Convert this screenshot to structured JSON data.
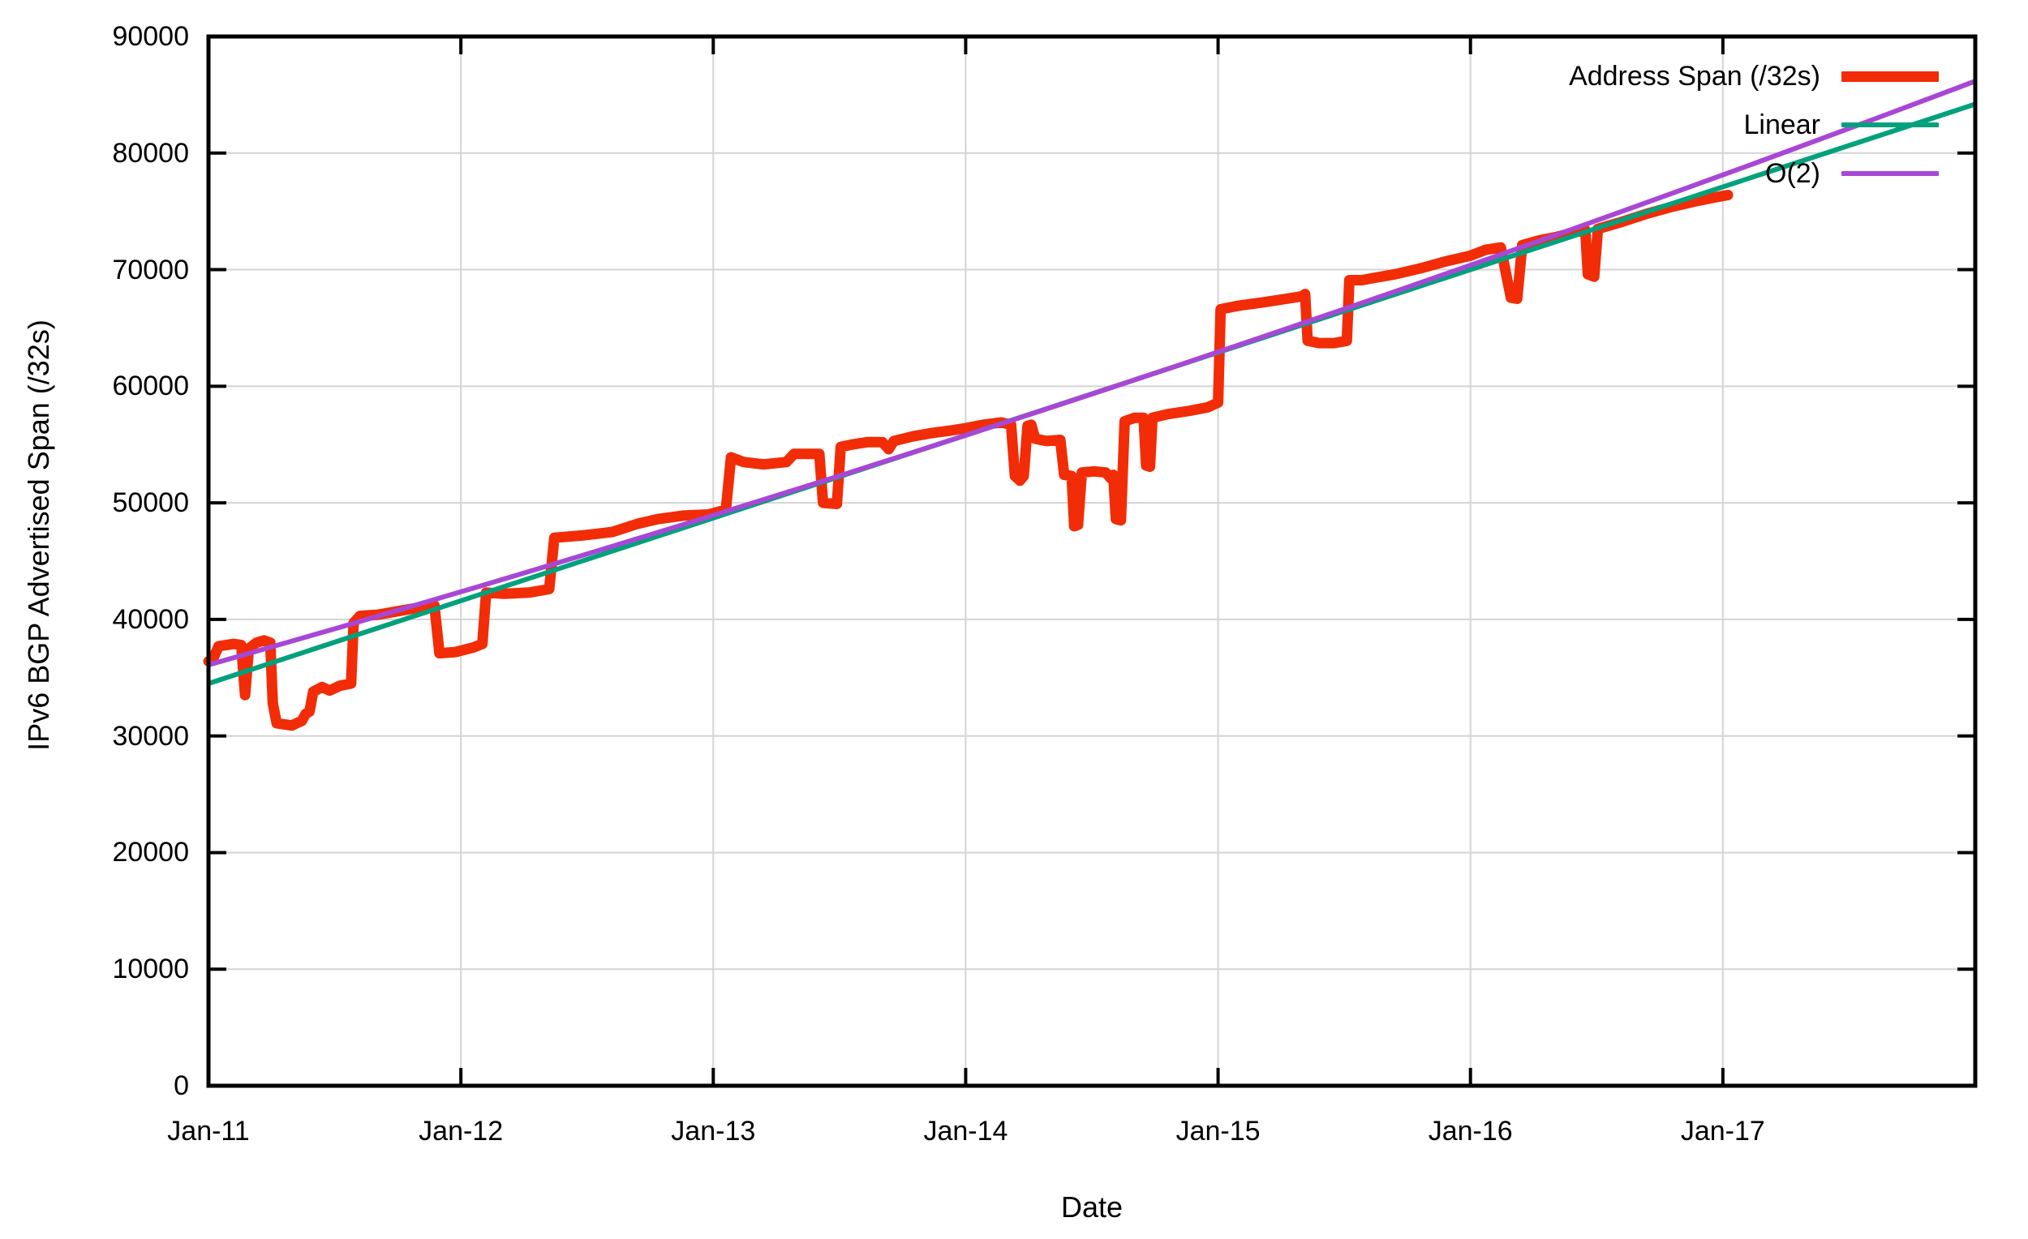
{
  "chart_data": {
    "type": "line",
    "title": "",
    "xlabel": "Date",
    "ylabel": "IPv6 BGP Advertised Span (/32s)",
    "x_tick_labels": [
      "Jan-11",
      "Jan-12",
      "Jan-13",
      "Jan-14",
      "Jan-15",
      "Jan-16",
      "Jan-17"
    ],
    "x_tick_years": [
      0,
      1,
      2,
      3,
      4,
      5,
      6
    ],
    "y_ticks": [
      0,
      10000,
      20000,
      30000,
      40000,
      50000,
      60000,
      70000,
      80000,
      90000
    ],
    "xlim_years": [
      0,
      7
    ],
    "ylim": [
      0,
      90000
    ],
    "grid": true,
    "legend_position": "top-right",
    "colors": {
      "background": "#ffffff",
      "axis": "#000000",
      "grid": "#d4d4d4",
      "text": "#000000"
    },
    "series": [
      {
        "name": "Address Span (/32s)",
        "color": "#f22c06",
        "width": 13,
        "kind": "data-steps",
        "points": [
          [
            0.0,
            36400
          ],
          [
            0.02,
            36700
          ],
          [
            0.04,
            37700
          ],
          [
            0.1,
            37900
          ],
          [
            0.13,
            37800
          ],
          [
            0.145,
            33500
          ],
          [
            0.16,
            37500
          ],
          [
            0.19,
            38000
          ],
          [
            0.22,
            38200
          ],
          [
            0.245,
            38000
          ],
          [
            0.255,
            32800
          ],
          [
            0.27,
            31100
          ],
          [
            0.33,
            30900
          ],
          [
            0.37,
            31300
          ],
          [
            0.385,
            31900
          ],
          [
            0.4,
            32100
          ],
          [
            0.415,
            33800
          ],
          [
            0.45,
            34200
          ],
          [
            0.48,
            33900
          ],
          [
            0.52,
            34300
          ],
          [
            0.565,
            34500
          ],
          [
            0.575,
            39700
          ],
          [
            0.6,
            40300
          ],
          [
            0.67,
            40400
          ],
          [
            0.75,
            40700
          ],
          [
            0.83,
            41000
          ],
          [
            0.895,
            41200
          ],
          [
            0.915,
            37100
          ],
          [
            0.98,
            37200
          ],
          [
            1.05,
            37600
          ],
          [
            1.085,
            37900
          ],
          [
            1.1,
            42300
          ],
          [
            1.17,
            42200
          ],
          [
            1.27,
            42300
          ],
          [
            1.35,
            42600
          ],
          [
            1.37,
            47000
          ],
          [
            1.48,
            47200
          ],
          [
            1.6,
            47500
          ],
          [
            1.7,
            48200
          ],
          [
            1.78,
            48600
          ],
          [
            1.88,
            48900
          ],
          [
            1.98,
            49000
          ],
          [
            2.05,
            49400
          ],
          [
            2.07,
            53900
          ],
          [
            2.12,
            53500
          ],
          [
            2.2,
            53300
          ],
          [
            2.29,
            53500
          ],
          [
            2.32,
            54200
          ],
          [
            2.42,
            54200
          ],
          [
            2.435,
            50000
          ],
          [
            2.49,
            49900
          ],
          [
            2.505,
            54800
          ],
          [
            2.55,
            55000
          ],
          [
            2.61,
            55200
          ],
          [
            2.67,
            55200
          ],
          [
            2.695,
            54600
          ],
          [
            2.715,
            55300
          ],
          [
            2.79,
            55700
          ],
          [
            2.87,
            56000
          ],
          [
            2.94,
            56200
          ],
          [
            3.0,
            56400
          ],
          [
            3.07,
            56700
          ],
          [
            3.14,
            56900
          ],
          [
            3.18,
            56700
          ],
          [
            3.195,
            52300
          ],
          [
            3.215,
            51900
          ],
          [
            3.23,
            52300
          ],
          [
            3.245,
            56600
          ],
          [
            3.26,
            56700
          ],
          [
            3.275,
            55500
          ],
          [
            3.32,
            55300
          ],
          [
            3.375,
            55400
          ],
          [
            3.39,
            52400
          ],
          [
            3.42,
            52300
          ],
          [
            3.43,
            48000
          ],
          [
            3.445,
            48100
          ],
          [
            3.46,
            52600
          ],
          [
            3.51,
            52700
          ],
          [
            3.555,
            52600
          ],
          [
            3.575,
            52100
          ],
          [
            3.585,
            52400
          ],
          [
            3.595,
            48600
          ],
          [
            3.615,
            48500
          ],
          [
            3.63,
            57000
          ],
          [
            3.67,
            57300
          ],
          [
            3.705,
            57300
          ],
          [
            3.715,
            53200
          ],
          [
            3.73,
            53100
          ],
          [
            3.74,
            57300
          ],
          [
            3.8,
            57600
          ],
          [
            3.89,
            57900
          ],
          [
            3.96,
            58200
          ],
          [
            4.0,
            58600
          ],
          [
            4.01,
            66600
          ],
          [
            4.08,
            66900
          ],
          [
            4.18,
            67200
          ],
          [
            4.27,
            67500
          ],
          [
            4.33,
            67700
          ],
          [
            4.345,
            67900
          ],
          [
            4.355,
            63900
          ],
          [
            4.4,
            63700
          ],
          [
            4.46,
            63700
          ],
          [
            4.51,
            63900
          ],
          [
            4.52,
            69100
          ],
          [
            4.57,
            69100
          ],
          [
            4.62,
            69300
          ],
          [
            4.7,
            69600
          ],
          [
            4.8,
            70100
          ],
          [
            4.9,
            70700
          ],
          [
            5.0,
            71200
          ],
          [
            5.06,
            71700
          ],
          [
            5.12,
            71900
          ],
          [
            5.16,
            67600
          ],
          [
            5.185,
            67500
          ],
          [
            5.205,
            72100
          ],
          [
            5.27,
            72500
          ],
          [
            5.34,
            72800
          ],
          [
            5.41,
            73200
          ],
          [
            5.455,
            73400
          ],
          [
            5.465,
            69600
          ],
          [
            5.49,
            69400
          ],
          [
            5.505,
            73500
          ],
          [
            5.6,
            74100
          ],
          [
            5.7,
            74800
          ],
          [
            5.8,
            75400
          ],
          [
            5.9,
            75900
          ],
          [
            5.97,
            76200
          ],
          [
            6.02,
            76400
          ]
        ]
      },
      {
        "name": "Linear",
        "color": "#00a17c",
        "width": 6,
        "kind": "linear-fit",
        "points": [
          [
            0,
            34500
          ],
          [
            7,
            84200
          ]
        ]
      },
      {
        "name": "O(2)",
        "color": "#a847d6",
        "width": 6,
        "kind": "quadratic-fit",
        "coeffs": {
          "a": 36100,
          "b": 6120,
          "c": 147.5
        },
        "t_range": [
          0,
          7
        ]
      }
    ]
  }
}
